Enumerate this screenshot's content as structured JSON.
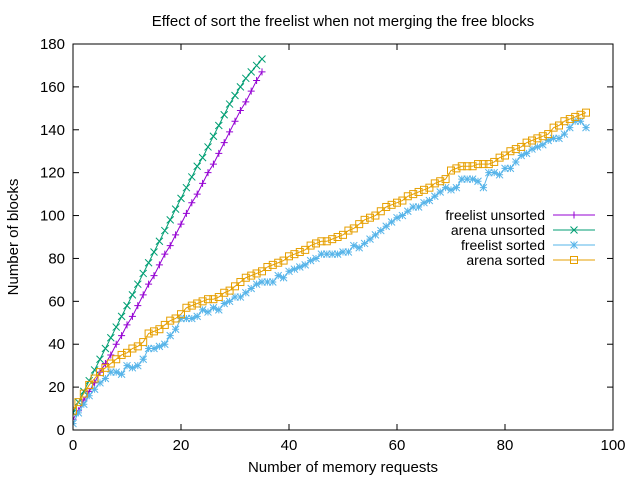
{
  "chart_data": {
    "type": "line",
    "title": "Effect of sort the freelist when not merging the free blocks",
    "xlabel": "Number of memory requests",
    "ylabel": "Number of blocks",
    "xlim": [
      0,
      100
    ],
    "ylim": [
      0,
      180
    ],
    "xticks": [
      0,
      20,
      40,
      60,
      80,
      100
    ],
    "yticks": [
      0,
      20,
      40,
      60,
      80,
      100,
      120,
      140,
      160,
      180
    ],
    "grid": false,
    "legend_position": "right",
    "series": [
      {
        "name": "freelist unsorted",
        "color": "#9400d3",
        "marker": "plus",
        "x": [
          0,
          1,
          2,
          3,
          4,
          5,
          6,
          7,
          8,
          9,
          10,
          11,
          12,
          13,
          14,
          15,
          16,
          17,
          18,
          19,
          20,
          21,
          22,
          23,
          24,
          25,
          26,
          27,
          28,
          29,
          30,
          31,
          32,
          33,
          34,
          35
        ],
        "y": [
          5,
          9,
          14,
          18,
          22,
          27,
          31,
          35,
          40,
          44,
          49,
          53,
          58,
          63,
          68,
          72,
          77,
          82,
          86,
          91,
          96,
          101,
          106,
          110,
          115,
          120,
          124,
          129,
          134,
          139,
          144,
          149,
          153,
          158,
          163,
          167
        ]
      },
      {
        "name": "arena unsorted",
        "color": "#009e73",
        "marker": "cross",
        "x": [
          0,
          1,
          2,
          3,
          4,
          5,
          6,
          7,
          8,
          9,
          10,
          11,
          12,
          13,
          14,
          15,
          16,
          17,
          18,
          19,
          20,
          21,
          22,
          23,
          24,
          25,
          26,
          27,
          28,
          29,
          30,
          31,
          32,
          33,
          34,
          35
        ],
        "y": [
          8,
          13,
          18,
          23,
          28,
          33,
          38,
          43,
          48,
          53,
          58,
          63,
          68,
          73,
          78,
          83,
          88,
          93,
          98,
          103,
          108,
          113,
          118,
          123,
          127,
          132,
          137,
          142,
          147,
          152,
          156,
          160,
          164,
          167,
          170,
          173
        ]
      },
      {
        "name": "freelist sorted",
        "color": "#56b4e9",
        "marker": "star",
        "x": [
          0,
          1,
          2,
          3,
          4,
          5,
          6,
          7,
          8,
          9,
          10,
          11,
          12,
          13,
          14,
          15,
          16,
          17,
          18,
          19,
          20,
          21,
          22,
          23,
          24,
          25,
          26,
          27,
          28,
          29,
          30,
          31,
          32,
          33,
          34,
          35,
          36,
          37,
          38,
          39,
          40,
          41,
          42,
          43,
          44,
          45,
          46,
          47,
          48,
          49,
          50,
          51,
          52,
          53,
          54,
          55,
          56,
          57,
          58,
          59,
          60,
          61,
          62,
          63,
          64,
          65,
          66,
          67,
          68,
          69,
          70,
          71,
          72,
          73,
          74,
          75,
          76,
          77,
          78,
          79,
          80,
          81,
          82,
          83,
          84,
          85,
          86,
          87,
          88,
          89,
          90,
          91,
          92,
          93,
          94,
          95
        ],
        "y": [
          3,
          8,
          12,
          16,
          19,
          22,
          24,
          27,
          27,
          26,
          30,
          29,
          30,
          33,
          38,
          38,
          39,
          40,
          44,
          47,
          52,
          52,
          52,
          53,
          56,
          55,
          57,
          56,
          59,
          60,
          62,
          62,
          64,
          66,
          68,
          69,
          69,
          69,
          72,
          71,
          74,
          75,
          76,
          77,
          79,
          80,
          82,
          82,
          82,
          82,
          83,
          83,
          86,
          85,
          87,
          89,
          91,
          93,
          95,
          97,
          99,
          100,
          102,
          104,
          104,
          106,
          107,
          109,
          111,
          113,
          112,
          113,
          117,
          117,
          117,
          116,
          113,
          120,
          120,
          119,
          122,
          122,
          125,
          128,
          129,
          131,
          132,
          133,
          135,
          136,
          136,
          138,
          141,
          144,
          144,
          141
        ]
      },
      {
        "name": "arena sorted",
        "color": "#e69f00",
        "marker": "square",
        "x": [
          0,
          1,
          2,
          3,
          4,
          5,
          6,
          7,
          8,
          9,
          10,
          11,
          12,
          13,
          14,
          15,
          16,
          17,
          18,
          19,
          20,
          21,
          22,
          23,
          24,
          25,
          26,
          27,
          28,
          29,
          30,
          31,
          32,
          33,
          34,
          35,
          36,
          37,
          38,
          39,
          40,
          41,
          42,
          43,
          44,
          45,
          46,
          47,
          48,
          49,
          50,
          51,
          52,
          53,
          54,
          55,
          56,
          57,
          58,
          59,
          60,
          61,
          62,
          63,
          64,
          65,
          66,
          67,
          68,
          69,
          70,
          71,
          72,
          73,
          74,
          75,
          76,
          77,
          78,
          79,
          80,
          81,
          82,
          83,
          84,
          85,
          86,
          87,
          88,
          89,
          90,
          91,
          92,
          93,
          94,
          95
        ],
        "y": [
          9,
          13,
          17,
          21,
          24,
          27,
          29,
          31,
          33,
          35,
          36,
          38,
          39,
          41,
          45,
          46,
          47,
          49,
          51,
          52,
          54,
          57,
          58,
          59,
          60,
          61,
          61,
          62,
          64,
          65,
          67,
          69,
          71,
          72,
          73,
          74,
          76,
          77,
          78,
          79,
          81,
          82,
          83,
          84,
          86,
          87,
          88,
          88,
          89,
          90,
          91,
          93,
          94,
          96,
          98,
          99,
          100,
          102,
          104,
          105,
          106,
          107,
          109,
          110,
          111,
          112,
          113,
          115,
          116,
          117,
          121,
          122,
          123,
          123,
          123,
          124,
          124,
          124,
          125,
          127,
          128,
          130,
          131,
          132,
          134,
          135,
          136,
          137,
          138,
          141,
          142,
          144,
          145,
          146,
          147,
          148
        ]
      }
    ]
  }
}
